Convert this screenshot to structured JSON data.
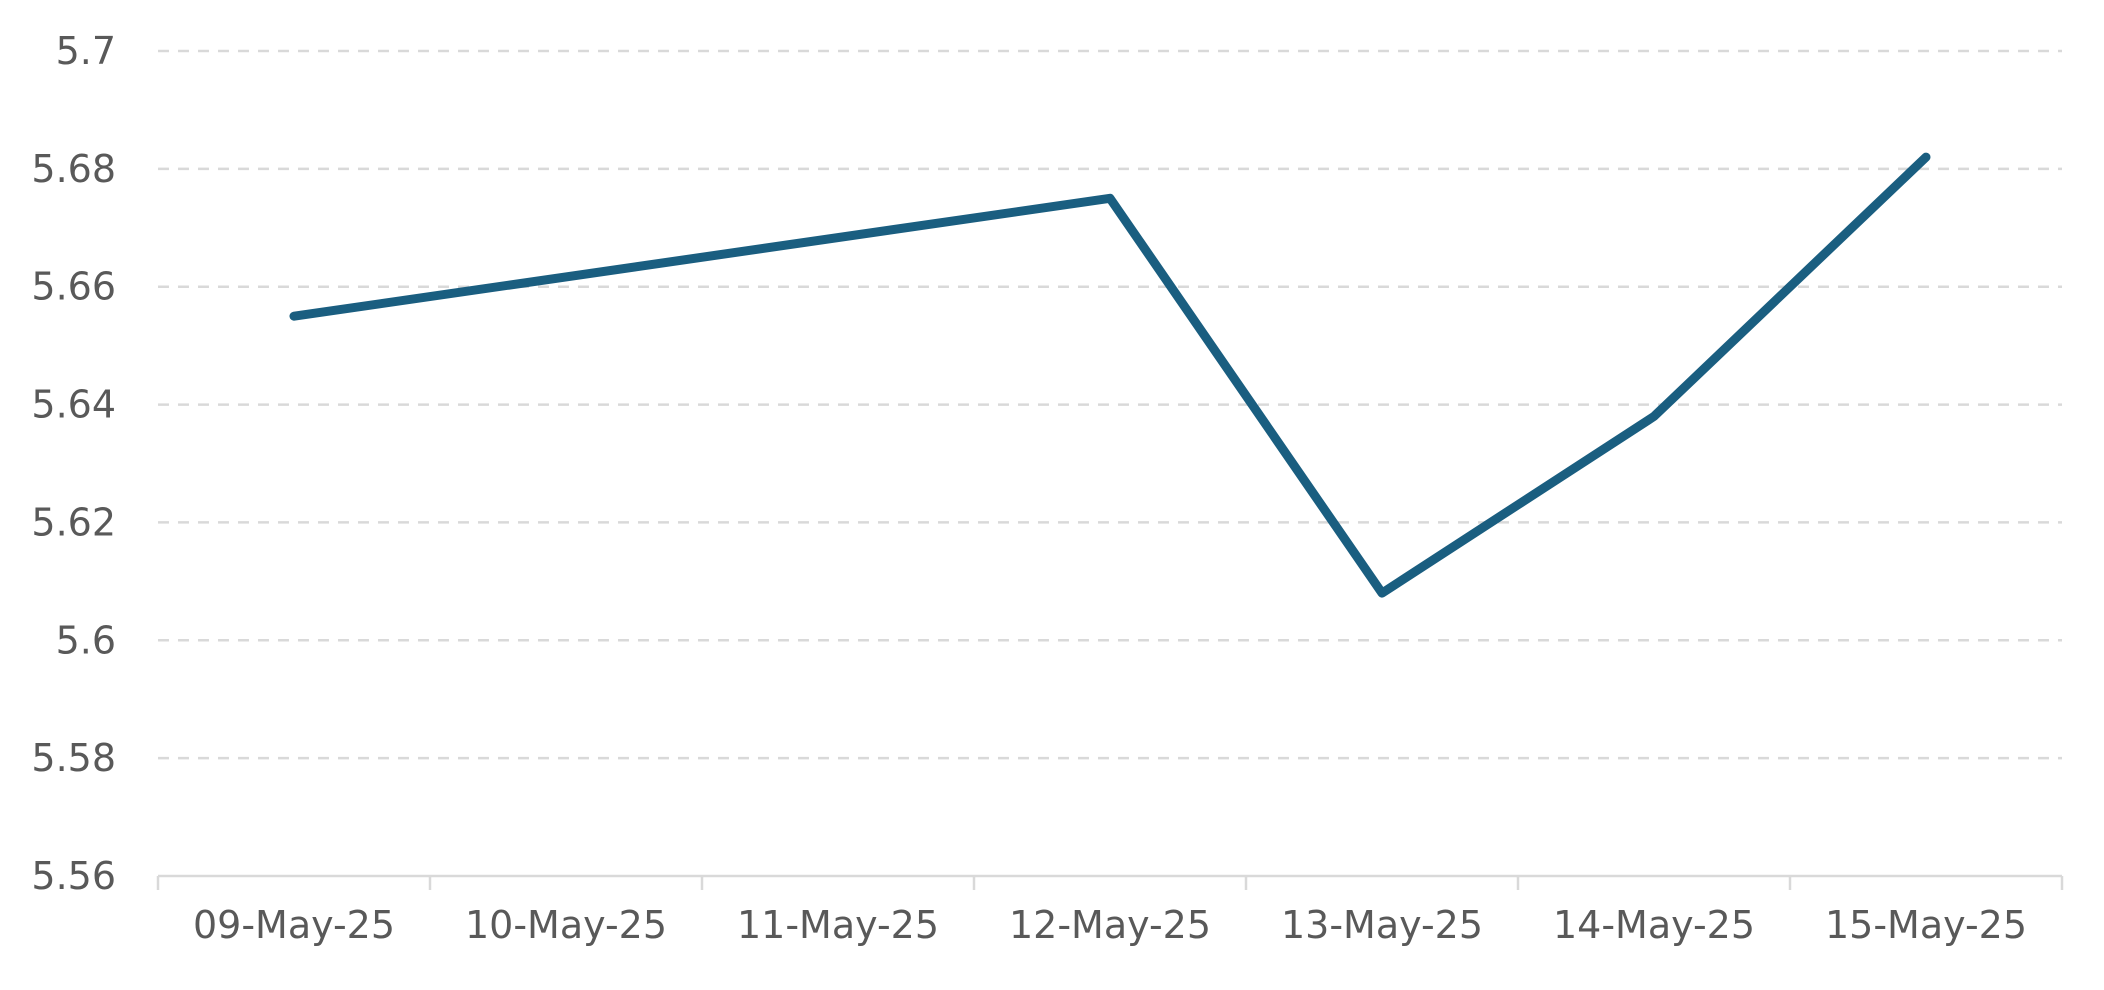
{
  "chart_data": {
    "type": "line",
    "categories": [
      "09-May-25",
      "10-May-25",
      "11-May-25",
      "12-May-25",
      "13-May-25",
      "14-May-25",
      "15-May-25"
    ],
    "x": [
      "09-May-25",
      "12-May-25",
      "13-May-25",
      "14-May-25",
      "15-May-25"
    ],
    "series": [
      {
        "values": [
          5.655,
          5.675,
          5.608,
          5.638,
          5.682
        ],
        "color": "#1a5e80"
      }
    ],
    "ylim": [
      5.56,
      5.7
    ],
    "yticks": [
      "5.56",
      "5.58",
      "5.6",
      "5.62",
      "5.64",
      "5.66",
      "5.68",
      "5.7"
    ],
    "grid": true,
    "legend": "none"
  }
}
